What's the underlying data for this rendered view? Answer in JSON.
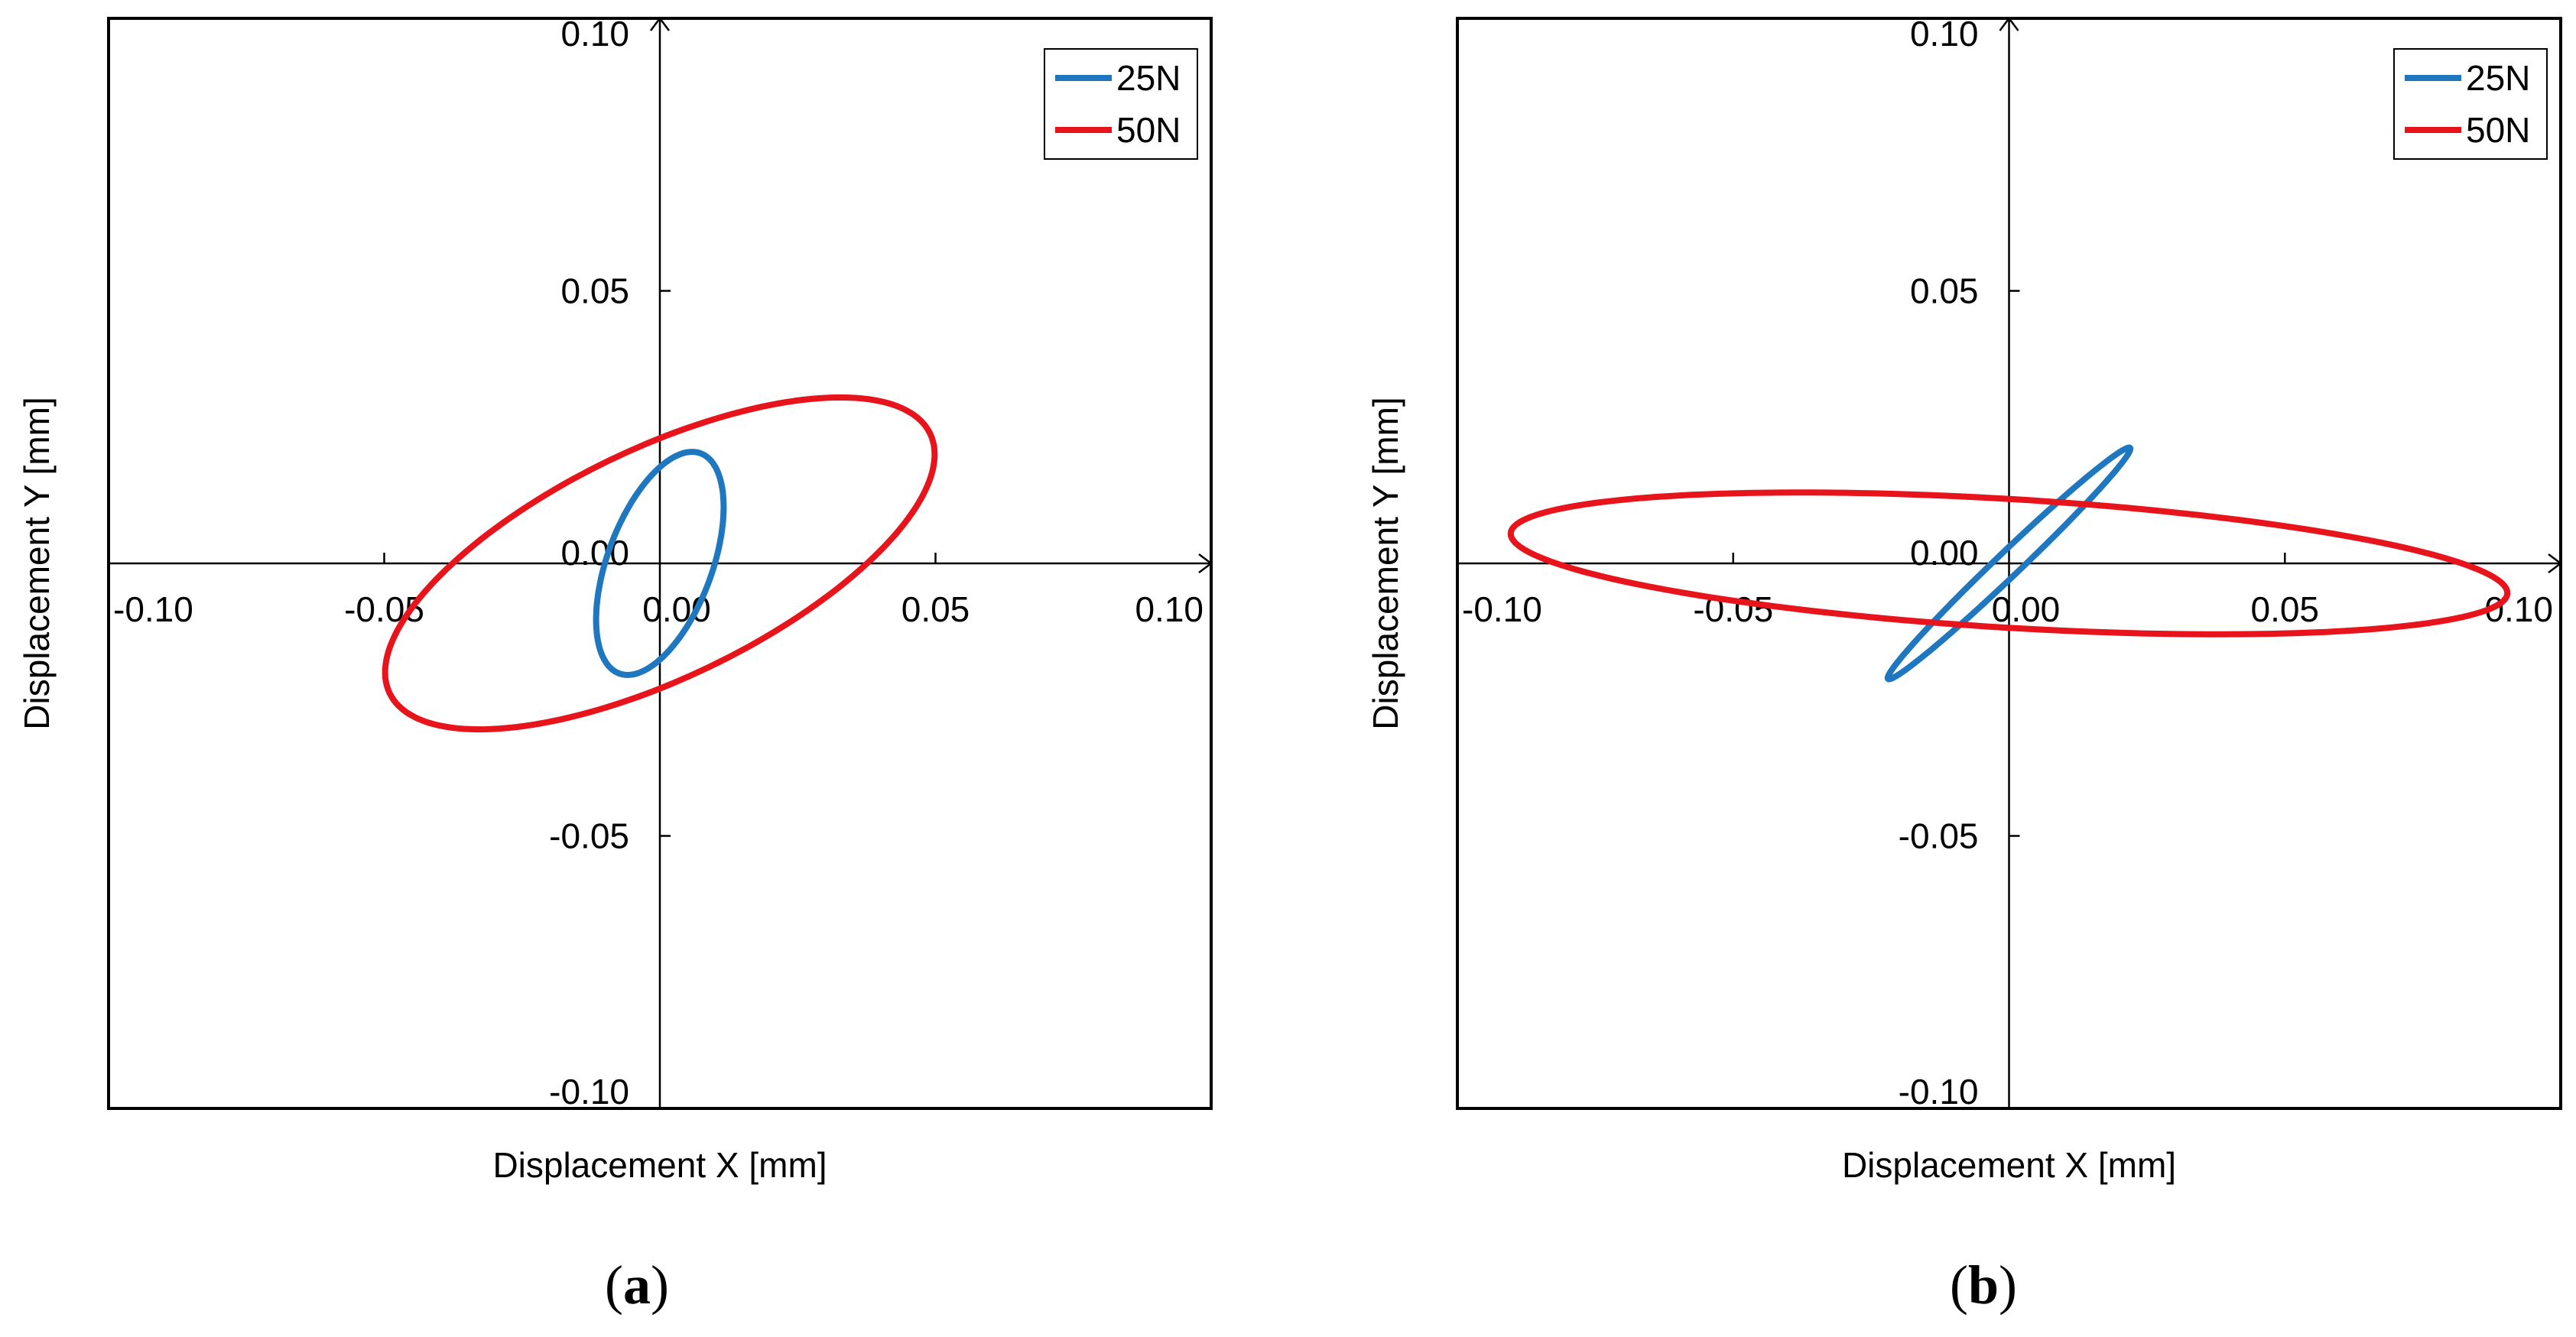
{
  "chart_data": [
    {
      "type": "line",
      "panel_label": "a",
      "xlabel": "Displacement X [mm]",
      "ylabel": "Displacement Y [mm]",
      "xlim": [
        -0.1,
        0.1
      ],
      "ylim": [
        -0.1,
        0.1
      ],
      "x_ticks": [
        "-0.10",
        "-0.05",
        "0.00",
        "0.05",
        "0.10"
      ],
      "y_ticks": [
        "0.10",
        "0.05",
        "0.00",
        "-0.05",
        "-0.10"
      ],
      "legend_position": "top-right",
      "series": [
        {
          "name": "25N",
          "color": "#1f77c0",
          "ellipse": {
            "cx": 0.0,
            "cy": 0.0,
            "a": 0.0215,
            "b": 0.0095,
            "angle_deg": 70
          }
        },
        {
          "name": "50N",
          "color": "#e8141c",
          "ellipse": {
            "cx": 0.0,
            "cy": 0.0,
            "a": 0.0545,
            "b": 0.021,
            "angle_deg": 26
          }
        }
      ]
    },
    {
      "type": "line",
      "panel_label": "b",
      "xlabel": "Displacement X [mm]",
      "ylabel": "Displacement Y [mm]",
      "xlim": [
        -0.1,
        0.1
      ],
      "ylim": [
        -0.1,
        0.1
      ],
      "x_ticks": [
        "-0.10",
        "-0.05",
        "0.00",
        "0.05",
        "0.10"
      ],
      "y_ticks": [
        "0.10",
        "0.05",
        "0.00",
        "-0.05",
        "-0.10"
      ],
      "legend_position": "top-right",
      "series": [
        {
          "name": "25N",
          "color": "#1f77c0",
          "ellipse": {
            "cx": 0.0,
            "cy": 0.0,
            "a": 0.0305,
            "b": 0.0022,
            "angle_deg": 44
          }
        },
        {
          "name": "50N",
          "color": "#e8141c",
          "ellipse": {
            "cx": 0.0,
            "cy": 0.0,
            "a": 0.0905,
            "b": 0.0118,
            "angle_deg": -3.5
          }
        }
      ]
    }
  ]
}
